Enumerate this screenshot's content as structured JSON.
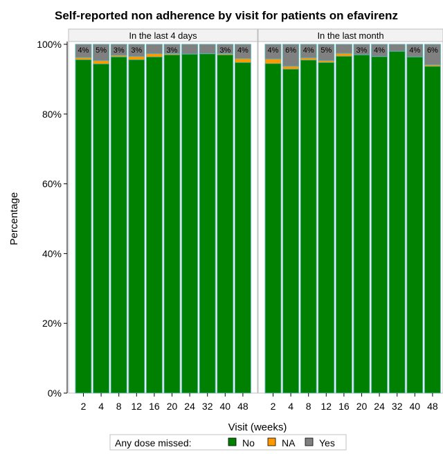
{
  "chart_data": {
    "type": "bar",
    "stacked": true,
    "title": "Self-reported non adherence by visit for patients on efavirenz",
    "xlabel": "Visit (weeks)",
    "ylabel": "Percentage",
    "ylim": [
      0,
      100
    ],
    "yticks": [
      "0%",
      "20%",
      "40%",
      "60%",
      "80%",
      "100%"
    ],
    "grid": false,
    "legend": {
      "title": "Any dose missed:",
      "placement": "bottom",
      "entries": [
        {
          "name": "No",
          "color": "#008000"
        },
        {
          "name": "NA",
          "color": "#ff9900"
        },
        {
          "name": "Yes",
          "color": "#808080"
        }
      ]
    },
    "colors": {
      "No": "#008000",
      "NA": "#ff9900",
      "Yes": "#808080",
      "bar_outline": "#5fb3b3",
      "panel_header": "#f2f2f2"
    },
    "panels": [
      {
        "title": "In the last 4 days",
        "categories": [
          "2",
          "4",
          "8",
          "12",
          "16",
          "20",
          "24",
          "32",
          "40",
          "48"
        ],
        "series": [
          {
            "name": "No",
            "values": [
              95.6,
              94.4,
              96.4,
              95.6,
              96.4,
              97.0,
              97.2,
              97.3,
              97.0,
              94.8
            ]
          },
          {
            "name": "NA",
            "values": [
              0.6,
              0.9,
              0.4,
              0.9,
              0.9,
              0.3,
              0.0,
              0.0,
              0.3,
              1.1
            ]
          },
          {
            "name": "Yes",
            "values": [
              3.8,
              4.7,
              3.2,
              3.5,
              2.7,
              2.7,
              2.8,
              2.7,
              2.7,
              4.1
            ]
          }
        ],
        "data_labels": [
          "4%",
          "5%",
          "3%",
          "3%",
          "",
          "3%",
          "",
          "",
          "3%",
          "4%"
        ]
      },
      {
        "title": "In the last month",
        "categories": [
          "2",
          "4",
          "8",
          "12",
          "16",
          "20",
          "24",
          "32",
          "40",
          "48"
        ],
        "series": [
          {
            "name": "No",
            "values": [
              94.5,
              92.9,
              95.5,
              94.8,
              96.6,
              97.0,
              96.5,
              98.0,
              96.4,
              93.7
            ]
          },
          {
            "name": "NA",
            "values": [
              1.3,
              0.8,
              0.6,
              0.5,
              0.8,
              0.0,
              0.0,
              0.0,
              0.0,
              0.4
            ]
          },
          {
            "name": "Yes",
            "values": [
              4.2,
              6.3,
              3.9,
              4.7,
              2.6,
              3.0,
              3.5,
              2.0,
              3.6,
              5.9
            ]
          }
        ],
        "data_labels": [
          "4%",
          "6%",
          "4%",
          "5%",
          "",
          "3%",
          "4%",
          "",
          "4%",
          "6%"
        ]
      }
    ]
  }
}
